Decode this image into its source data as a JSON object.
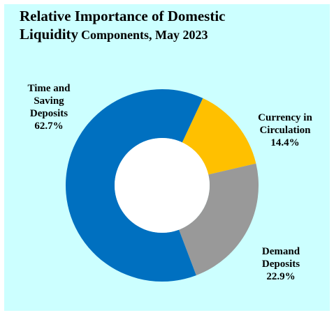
{
  "chart_data": {
    "type": "pie",
    "title_line1": "Relative Importance of Domestic",
    "title_line2_big": "Liquidity",
    "title_line2_small": "Components, May 2023",
    "slices": [
      {
        "label_lines": [
          "Currency in",
          "Circulation"
        ],
        "value_text": "14.4%",
        "value": 14.4,
        "color": "#ffc000"
      },
      {
        "label_lines": [
          "Demand",
          "Deposits"
        ],
        "value_text": "22.9%",
        "value": 22.9,
        "color": "#999999"
      },
      {
        "label_lines": [
          "Time and",
          "Saving",
          "Deposits"
        ],
        "value_text": "62.7%",
        "value": 62.7,
        "color": "#0070c0"
      }
    ],
    "hole": "donut",
    "background": "#ccffff"
  }
}
